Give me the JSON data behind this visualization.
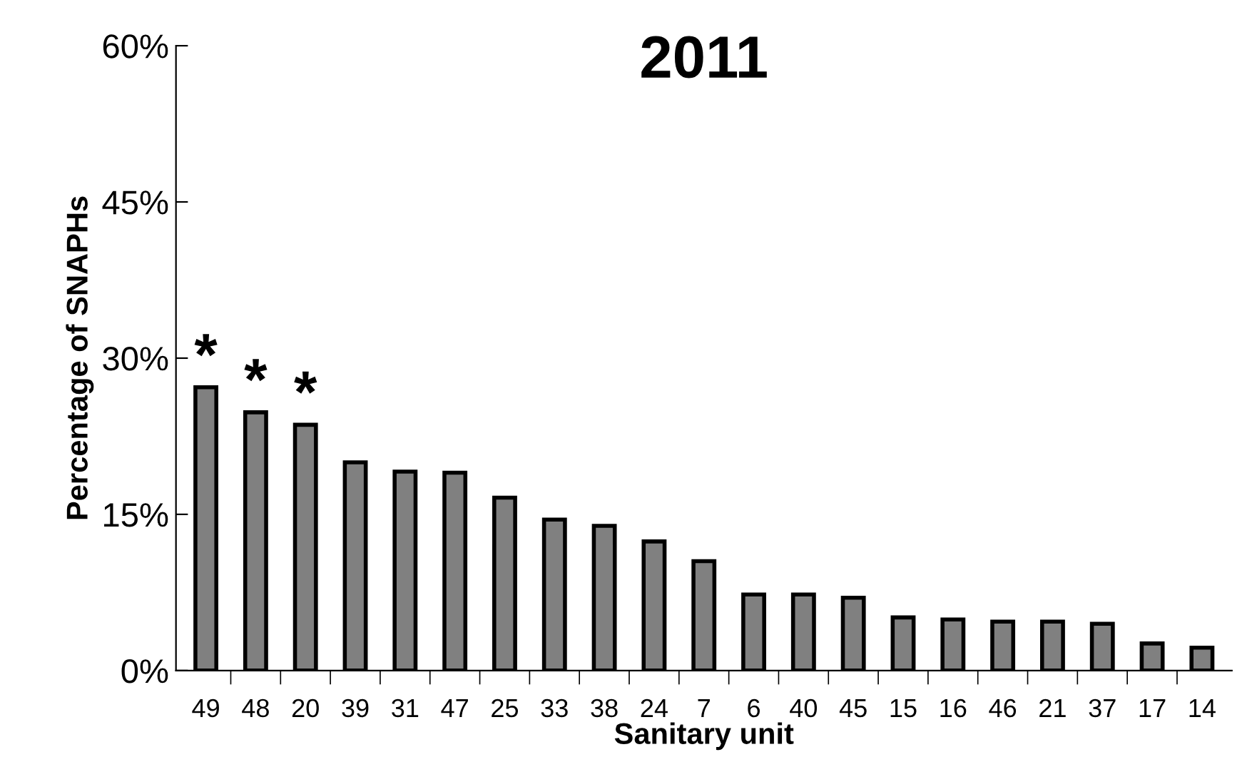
{
  "chart_data": {
    "type": "bar",
    "title": "2011",
    "xlabel": "Sanitary unit",
    "ylabel": "Percentage of SNAPHs",
    "categories": [
      "49",
      "48",
      "20",
      "39",
      "31",
      "47",
      "25",
      "33",
      "38",
      "24",
      "7",
      "6",
      "40",
      "45",
      "15",
      "16",
      "46",
      "21",
      "37",
      "17",
      "14"
    ],
    "values": [
      27.2,
      24.8,
      23.6,
      20.0,
      19.1,
      19.0,
      16.6,
      14.5,
      13.9,
      12.4,
      10.5,
      7.3,
      7.3,
      7.0,
      5.1,
      4.9,
      4.7,
      4.7,
      4.5,
      2.6,
      2.2
    ],
    "color": "#808080",
    "annotations": [
      {
        "text": "*",
        "x": "49",
        "y": 27.2
      },
      {
        "text": "*",
        "x": "48",
        "y": 24.8
      },
      {
        "text": "*",
        "x": "20",
        "y": 23.6
      }
    ],
    "ylim": [
      0,
      60
    ],
    "yticks": [
      {
        "value": 0,
        "label": "0%"
      },
      {
        "value": 15,
        "label": "15%"
      },
      {
        "value": 30,
        "label": "30%"
      },
      {
        "value": 45,
        "label": "45%"
      },
      {
        "value": 60,
        "label": "60%"
      }
    ],
    "grid": false,
    "legend": false
  }
}
